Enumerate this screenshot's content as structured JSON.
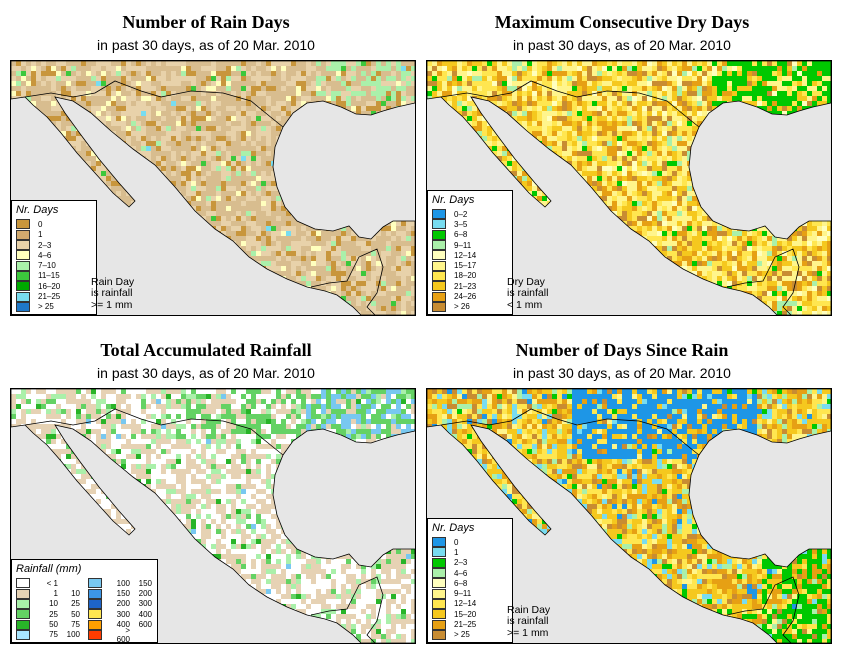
{
  "panels": [
    {
      "id": "rain-days",
      "title": "Number of Rain Days",
      "subtitle": "in past 30 days, as of  20 Mar. 2010",
      "legend": {
        "title": "Nr. Days",
        "items": [
          {
            "label": "0",
            "color": "#c8963c"
          },
          {
            "label": "1",
            "color": "#d2aa6e"
          },
          {
            "label": "2–3",
            "color": "#e8d2aa"
          },
          {
            "label": "4–6",
            "color": "#ffffbe"
          },
          {
            "label": "7–10",
            "color": "#aaf0aa"
          },
          {
            "label": "11–15",
            "color": "#3cc83c"
          },
          {
            "label": "16–20",
            "color": "#00aa00"
          },
          {
            "label": "21–25",
            "color": "#78dcf0"
          },
          {
            "label": "> 25",
            "color": "#1e78c8"
          }
        ]
      },
      "note": [
        "Rain Day",
        "is rainfall",
        ">= 1 mm"
      ],
      "palette": [
        "#d8bd8f",
        "#e8d2aa",
        "#c8963c",
        "#ffffbe",
        "#aaf0aa",
        "#3cc83c",
        "#78dcf0"
      ],
      "weights": [
        44,
        32,
        14,
        5,
        3,
        1.5,
        0.5
      ]
    },
    {
      "id": "max-dry-days",
      "title": "Maximum Consecutive Dry Days",
      "subtitle": "in past 30 days, as of  20 Mar. 2010",
      "legend": {
        "title": "Nr. Days",
        "items": [
          {
            "label": "0–2",
            "color": "#1e96e6"
          },
          {
            "label": "3–5",
            "color": "#78dcf0"
          },
          {
            "label": "6–8",
            "color": "#00c800"
          },
          {
            "label": "9–11",
            "color": "#aaf0aa"
          },
          {
            "label": "12–14",
            "color": "#ffffbe"
          },
          {
            "label": "15–17",
            "color": "#fff58c"
          },
          {
            "label": "18–20",
            "color": "#ffe650"
          },
          {
            "label": "21–23",
            "color": "#f5c81e"
          },
          {
            "label": "24–26",
            "color": "#e6a014"
          },
          {
            "label": "> 26",
            "color": "#c88c32"
          }
        ]
      },
      "note": [
        "Dry Day",
        "is rainfall",
        "< 1 mm"
      ],
      "palette": [
        "#fff58c",
        "#ffe650",
        "#f5c81e",
        "#e6a014",
        "#c88c32",
        "#ffffbe",
        "#aaf0aa",
        "#00c800"
      ],
      "weights": [
        22,
        20,
        18,
        16,
        10,
        6,
        5,
        3
      ]
    },
    {
      "id": "total-rainfall",
      "title": "Total Accumulated Rainfall",
      "subtitle": "in past 30 days, as of  20 Mar. 2010",
      "legend": {
        "title": "Rainfall (mm)",
        "rows": [
          {
            "lo": "< 1",
            "hi": "",
            "color": "#ffffff"
          },
          {
            "lo": "1",
            "hi": "10",
            "color": "#e6d2b4"
          },
          {
            "lo": "10",
            "hi": "25",
            "color": "#aaf0aa"
          },
          {
            "lo": "25",
            "hi": "50",
            "color": "#64d264"
          },
          {
            "lo": "50",
            "hi": "75",
            "color": "#28b428"
          },
          {
            "lo": "75",
            "hi": "100",
            "color": "#aae6ff"
          },
          {
            "lo": "100",
            "hi": "150",
            "color": "#78c8f0"
          },
          {
            "lo": "150",
            "hi": "200",
            "color": "#3c96e6"
          },
          {
            "lo": "200",
            "hi": "300",
            "color": "#1e64c8"
          },
          {
            "lo": "300",
            "hi": "400",
            "color": "#ffe650"
          },
          {
            "lo": "400",
            "hi": "600",
            "color": "#ffa000"
          },
          {
            "lo": "> 600",
            "hi": "",
            "color": "#ff3c00"
          }
        ]
      },
      "note": [],
      "palette": [
        "#ffffff",
        "#e6d2b4",
        "#aaf0aa",
        "#64d264",
        "#28b428",
        "#78c8f0"
      ],
      "weights": [
        40,
        40,
        10,
        6,
        3,
        1
      ]
    },
    {
      "id": "days-since-rain",
      "title": "Number of Days Since Rain",
      "subtitle": "in past 30 days, as of  20 Mar. 2010",
      "legend": {
        "title": "Nr. Days",
        "items": [
          {
            "label": "0",
            "color": "#1e96e6"
          },
          {
            "label": "1",
            "color": "#78dcf0"
          },
          {
            "label": "2–3",
            "color": "#00c800"
          },
          {
            "label": "4–6",
            "color": "#aaf0aa"
          },
          {
            "label": "6–8",
            "color": "#ffffbe"
          },
          {
            "label": "9–11",
            "color": "#fff58c"
          },
          {
            "label": "12–14",
            "color": "#ffe650"
          },
          {
            "label": "15–20",
            "color": "#f5c81e"
          },
          {
            "label": "21–25",
            "color": "#e6a014"
          },
          {
            "label": "> 25",
            "color": "#c88c32"
          }
        ]
      },
      "note": [
        "Rain Day",
        "is rainfall",
        ">= 1 mm"
      ],
      "palette": [
        "#f5c81e",
        "#ffe650",
        "#e6a014",
        "#c88c32",
        "#fff58c",
        "#78dcf0",
        "#aaf0aa",
        "#1e96e6",
        "#00c800"
      ],
      "weights": [
        24,
        18,
        18,
        12,
        8,
        8,
        6,
        3,
        3
      ]
    }
  ],
  "colors": {
    "water": "#e6e6e6",
    "land_outside": "#e6e6e6",
    "border": "#000000"
  }
}
